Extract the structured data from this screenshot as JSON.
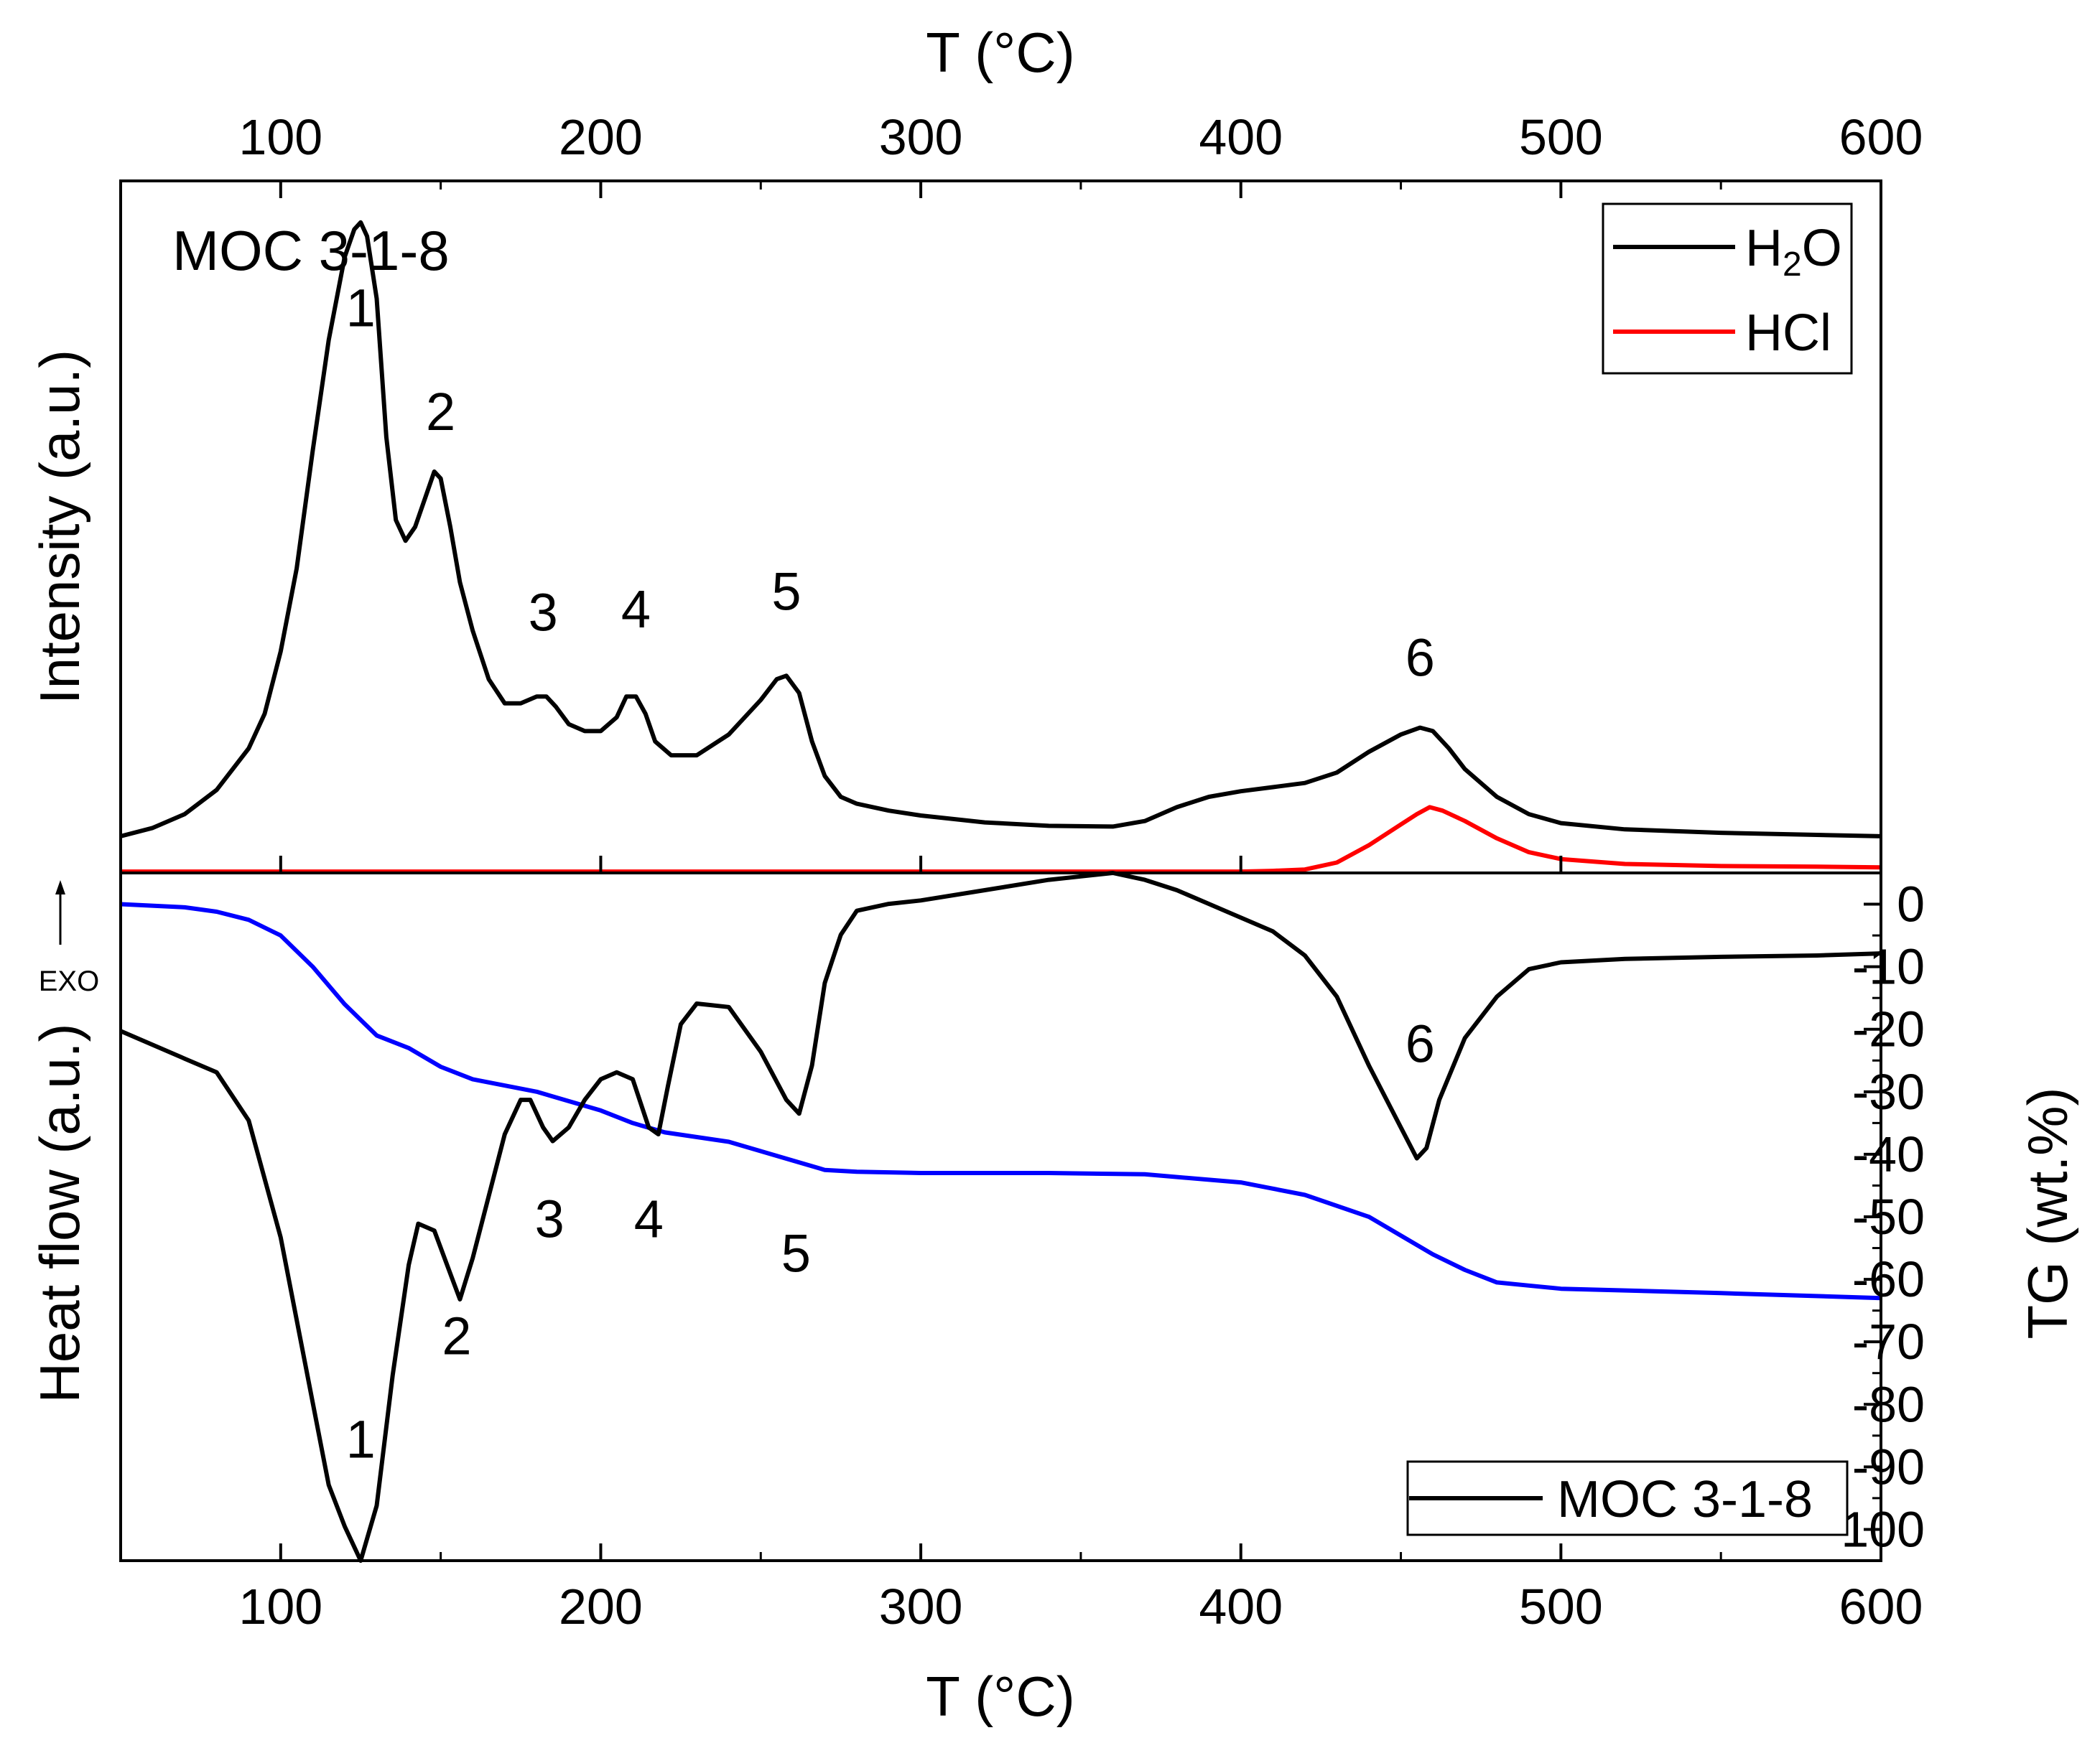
{
  "chart_data": [
    {
      "type": "line",
      "panel": "top",
      "title": "",
      "xlabel": "T (°C)",
      "ylabel": "Intensity (a.u.)",
      "xlim": [
        50,
        600
      ],
      "ylim": [
        0,
        100
      ],
      "x_ticks": [
        100,
        200,
        300,
        400,
        500,
        600
      ],
      "sample_label": "MOC 3-1-8",
      "legend_position": "top-right",
      "series": [
        {
          "name": "H2O",
          "legend_main": "H",
          "legend_sub": "2",
          "legend_tail": "O",
          "color": "#000000",
          "points": [
            [
              50,
              5.3
            ],
            [
              60,
              6.5
            ],
            [
              70,
              8.5
            ],
            [
              80,
              12
            ],
            [
              90,
              18
            ],
            [
              95,
              23
            ],
            [
              100,
              32
            ],
            [
              105,
              44
            ],
            [
              110,
              61
            ],
            [
              115,
              77
            ],
            [
              120,
              89
            ],
            [
              123,
              93
            ],
            [
              125,
              94
            ],
            [
              127,
              92
            ],
            [
              130,
              83
            ],
            [
              133,
              63
            ],
            [
              136,
              51
            ],
            [
              139,
              48
            ],
            [
              142,
              50
            ],
            [
              145,
              54
            ],
            [
              148,
              58
            ],
            [
              150,
              57
            ],
            [
              153,
              50
            ],
            [
              156,
              42
            ],
            [
              160,
              35
            ],
            [
              165,
              28
            ],
            [
              170,
              24.5
            ],
            [
              175,
              24.5
            ],
            [
              180,
              25.5
            ],
            [
              183,
              25.5
            ],
            [
              186,
              24
            ],
            [
              190,
              21.5
            ],
            [
              195,
              20.5
            ],
            [
              200,
              20.5
            ],
            [
              205,
              22.5
            ],
            [
              208,
              25.5
            ],
            [
              211,
              25.5
            ],
            [
              214,
              23
            ],
            [
              217,
              19
            ],
            [
              222,
              17
            ],
            [
              230,
              17
            ],
            [
              240,
              20
            ],
            [
              250,
              25
            ],
            [
              255,
              28
            ],
            [
              258,
              28.5
            ],
            [
              262,
              26
            ],
            [
              266,
              19
            ],
            [
              270,
              14
            ],
            [
              275,
              11
            ],
            [
              280,
              10
            ],
            [
              290,
              9
            ],
            [
              300,
              8.3
            ],
            [
              320,
              7.3
            ],
            [
              340,
              6.8
            ],
            [
              360,
              6.7
            ],
            [
              370,
              7.5
            ],
            [
              380,
              9.5
            ],
            [
              390,
              11
            ],
            [
              400,
              11.8
            ],
            [
              410,
              12.4
            ],
            [
              420,
              13
            ],
            [
              430,
              14.5
            ],
            [
              440,
              17.5
            ],
            [
              450,
              20
            ],
            [
              456,
              21
            ],
            [
              460,
              20.5
            ],
            [
              465,
              18
            ],
            [
              470,
              15
            ],
            [
              480,
              11
            ],
            [
              490,
              8.5
            ],
            [
              500,
              7.2
            ],
            [
              520,
              6.3
            ],
            [
              550,
              5.8
            ],
            [
              580,
              5.5
            ],
            [
              600,
              5.3
            ]
          ]
        },
        {
          "name": "HCl",
          "legend_label": "HCl",
          "color": "#ff0000",
          "points": [
            [
              50,
              0.2
            ],
            [
              300,
              0.2
            ],
            [
              400,
              0.2
            ],
            [
              410,
              0.3
            ],
            [
              420,
              0.5
            ],
            [
              430,
              1.5
            ],
            [
              440,
              4
            ],
            [
              450,
              7
            ],
            [
              455,
              8.5
            ],
            [
              459,
              9.5
            ],
            [
              463,
              9
            ],
            [
              470,
              7.5
            ],
            [
              480,
              5
            ],
            [
              490,
              3
            ],
            [
              500,
              2
            ],
            [
              520,
              1.3
            ],
            [
              550,
              1
            ],
            [
              580,
              0.9
            ],
            [
              600,
              0.8
            ]
          ]
        }
      ],
      "peak_labels": [
        {
          "text": "1",
          "x": 125,
          "y": 79
        },
        {
          "text": "2",
          "x": 150,
          "y": 64
        },
        {
          "text": "3",
          "x": 182,
          "y": 35
        },
        {
          "text": "4",
          "x": 211,
          "y": 35.5
        },
        {
          "text": "5",
          "x": 258,
          "y": 38
        },
        {
          "text": "6",
          "x": 456,
          "y": 28.5
        }
      ]
    },
    {
      "type": "line",
      "panel": "bottom",
      "title": "",
      "xlabel": "T (°C)",
      "ylabel": "Heat flow (a.u.)",
      "ylabel_right": "TG (wt.%)",
      "exo_label": "EXO",
      "xlim": [
        50,
        600
      ],
      "ylim_right": [
        -105,
        5
      ],
      "x_ticks": [
        100,
        200,
        300,
        400,
        500,
        600
      ],
      "y_ticks_right": [
        0,
        -10,
        -20,
        -30,
        -40,
        -50,
        -60,
        -70,
        -80,
        -90,
        -100
      ],
      "legend_position": "bottom-right",
      "series": [
        {
          "name": "MOC 3-1-8",
          "legend_label": "MOC 3-1-8",
          "role": "heat_flow",
          "color": "#000000",
          "points": [
            [
              50,
              77
            ],
            [
              70,
              73
            ],
            [
              80,
              71
            ],
            [
              90,
              64
            ],
            [
              100,
              47
            ],
            [
              110,
              23
            ],
            [
              115,
              11
            ],
            [
              120,
              5
            ],
            [
              125,
              0
            ],
            [
              130,
              8
            ],
            [
              135,
              27
            ],
            [
              140,
              43
            ],
            [
              143,
              49
            ],
            [
              148,
              48
            ],
            [
              152,
              43
            ],
            [
              156,
              38
            ],
            [
              160,
              44
            ],
            [
              165,
              53
            ],
            [
              170,
              62
            ],
            [
              175,
              67
            ],
            [
              178,
              67
            ],
            [
              182,
              63
            ],
            [
              185,
              61
            ],
            [
              190,
              63
            ],
            [
              195,
              67
            ],
            [
              200,
              70
            ],
            [
              205,
              71
            ],
            [
              210,
              70
            ],
            [
              215,
              63
            ],
            [
              218,
              62
            ],
            [
              221,
              69
            ],
            [
              225,
              78
            ],
            [
              230,
              81
            ],
            [
              240,
              80.5
            ],
            [
              250,
              74
            ],
            [
              258,
              67
            ],
            [
              262,
              65
            ],
            [
              266,
              72
            ],
            [
              270,
              84
            ],
            [
              275,
              91
            ],
            [
              280,
              94.5
            ],
            [
              290,
              95.5
            ],
            [
              300,
              96
            ],
            [
              320,
              97.5
            ],
            [
              340,
              99
            ],
            [
              350,
              99.5
            ],
            [
              360,
              100
            ],
            [
              370,
              99
            ],
            [
              380,
              97.5
            ],
            [
              390,
              95.5
            ],
            [
              400,
              93.5
            ],
            [
              410,
              91.5
            ],
            [
              420,
              88
            ],
            [
              430,
              82
            ],
            [
              440,
              72
            ],
            [
              450,
              63
            ],
            [
              455,
              58.5
            ],
            [
              458,
              60
            ],
            [
              462,
              67
            ],
            [
              470,
              76
            ],
            [
              480,
              82
            ],
            [
              490,
              86
            ],
            [
              500,
              87
            ],
            [
              520,
              87.5
            ],
            [
              550,
              87.8
            ],
            [
              580,
              88
            ],
            [
              600,
              88.3
            ]
          ]
        },
        {
          "name": "TG",
          "role": "tg_wt_percent",
          "color": "#0000ff",
          "points": [
            [
              50,
              0
            ],
            [
              70,
              -0.5
            ],
            [
              80,
              -1.2
            ],
            [
              90,
              -2.5
            ],
            [
              100,
              -5
            ],
            [
              110,
              -10
            ],
            [
              120,
              -16
            ],
            [
              130,
              -21
            ],
            [
              140,
              -23
            ],
            [
              150,
              -26
            ],
            [
              160,
              -28
            ],
            [
              180,
              -30
            ],
            [
              190,
              -31.5
            ],
            [
              200,
              -33
            ],
            [
              210,
              -35
            ],
            [
              220,
              -36.5
            ],
            [
              240,
              -38
            ],
            [
              260,
              -41
            ],
            [
              270,
              -42.5
            ],
            [
              280,
              -42.8
            ],
            [
              300,
              -43
            ],
            [
              340,
              -43
            ],
            [
              370,
              -43.2
            ],
            [
              400,
              -44.5
            ],
            [
              420,
              -46.5
            ],
            [
              440,
              -50
            ],
            [
              450,
              -53
            ],
            [
              460,
              -56
            ],
            [
              470,
              -58.5
            ],
            [
              480,
              -60.5
            ],
            [
              490,
              -61
            ],
            [
              500,
              -61.5
            ],
            [
              550,
              -62.2
            ],
            [
              600,
              -63
            ]
          ]
        }
      ],
      "peak_labels": [
        {
          "text": "1",
          "x": 125,
          "y": 15
        },
        {
          "text": "2",
          "x": 155,
          "y": 30
        },
        {
          "text": "3",
          "x": 184,
          "y": 47
        },
        {
          "text": "4",
          "x": 215,
          "y": 47
        },
        {
          "text": "5",
          "x": 261,
          "y": 42
        },
        {
          "text": "6",
          "x": 456,
          "y": 72.5
        }
      ]
    }
  ]
}
